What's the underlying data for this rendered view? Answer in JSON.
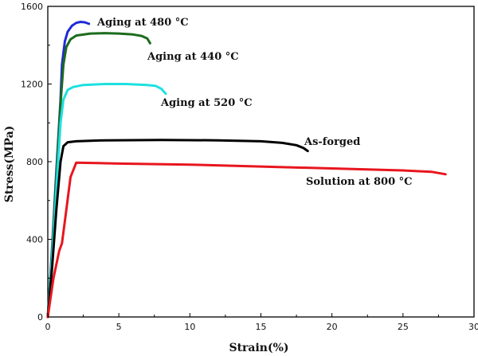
{
  "chart_data": {
    "type": "line",
    "title": "",
    "xlabel": "Strain(%)",
    "ylabel": "Stress(MPa)",
    "xlim": [
      0,
      30
    ],
    "ylim": [
      0,
      1600
    ],
    "x_ticks": [
      "0",
      "5",
      "10",
      "15",
      "20",
      "25",
      "30"
    ],
    "y_ticks": [
      "0",
      "400",
      "800",
      "1200",
      "1600"
    ],
    "grid": false,
    "legend": "inline labels",
    "series": [
      {
        "name": "Aging at 480 °C",
        "color": "#1f2bd6",
        "x": [
          0,
          0.3,
          0.6,
          0.9,
          1.0,
          1.2,
          1.4,
          1.7,
          2.0,
          2.3,
          2.6,
          2.9
        ],
        "y": [
          0,
          350,
          750,
          1120,
          1300,
          1420,
          1470,
          1500,
          1515,
          1520,
          1518,
          1510
        ]
      },
      {
        "name": "Aging at 440 °C",
        "color": "#1c6b1c",
        "x": [
          0,
          0.3,
          0.6,
          0.9,
          1.1,
          1.3,
          1.6,
          2.0,
          3.0,
          4.0,
          5.0,
          6.0,
          6.6,
          7.0,
          7.2
        ],
        "y": [
          0,
          330,
          720,
          1100,
          1300,
          1390,
          1430,
          1450,
          1460,
          1462,
          1460,
          1455,
          1448,
          1435,
          1410
        ]
      },
      {
        "name": "Aging at 520 °C",
        "color": "#1ee0e0",
        "x": [
          0,
          0.3,
          0.6,
          0.9,
          1.1,
          1.4,
          1.8,
          2.5,
          4.0,
          5.5,
          7.0,
          7.6,
          8.0,
          8.3
        ],
        "y": [
          0,
          300,
          650,
          1000,
          1120,
          1170,
          1185,
          1195,
          1200,
          1200,
          1195,
          1190,
          1175,
          1150
        ]
      },
      {
        "name": "As-forged",
        "color": "#000000",
        "x": [
          0,
          0.3,
          0.6,
          0.9,
          1.1,
          1.4,
          2.0,
          4.0,
          8.0,
          12.0,
          15.0,
          16.5,
          17.5,
          18.0,
          18.3
        ],
        "y": [
          0,
          250,
          550,
          800,
          880,
          900,
          905,
          910,
          912,
          910,
          905,
          897,
          885,
          870,
          855
        ]
      },
      {
        "name": "Solution at 800 °C",
        "color": "#e8161e",
        "x": [
          0,
          0.4,
          0.8,
          1.0,
          1.3,
          1.6,
          2.0,
          5.0,
          10.0,
          15.0,
          20.0,
          25.0,
          27.0,
          28.0
        ],
        "y": [
          0,
          200,
          340,
          380,
          550,
          720,
          795,
          790,
          785,
          775,
          765,
          755,
          748,
          735
        ]
      }
    ]
  }
}
